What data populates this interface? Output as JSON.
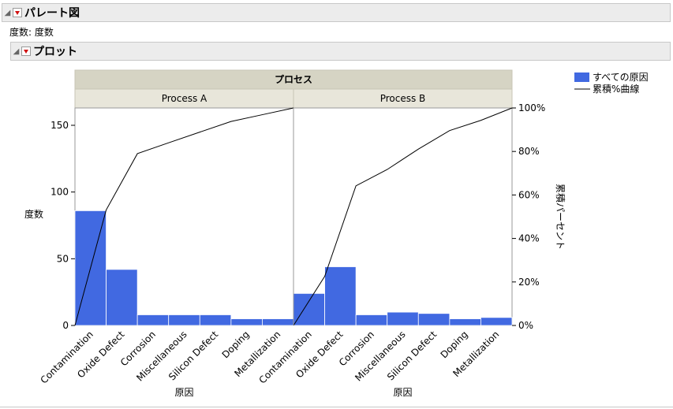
{
  "report": {
    "title": "パレート図",
    "freq_line": "度数: 度数",
    "plot_title": "プロット"
  },
  "colors": {
    "bar": "#4169e1",
    "cum_line": "#000000",
    "strip_top": "#d6d4c4",
    "strip_bottom": "#e8e6da"
  },
  "chart_data": {
    "type": "bar",
    "group_title": "プロセス",
    "panels": [
      {
        "name": "Process A",
        "categories": [
          "Contamination",
          "Oxide Defect",
          "Corrosion",
          "Miscellaneous",
          "Silicon Defect",
          "Doping",
          "Metallization"
        ],
        "values": [
          86,
          42,
          8,
          8,
          8,
          5,
          5
        ],
        "cumulative_pct": [
          53.1,
          79.0,
          84.0,
          88.9,
          93.8,
          96.9,
          100
        ]
      },
      {
        "name": "Process B",
        "categories": [
          "Contamination",
          "Oxide Defect",
          "Corrosion",
          "Miscellaneous",
          "Silicon Defect",
          "Doping",
          "Metallization"
        ],
        "values": [
          24,
          44,
          8,
          10,
          9,
          5,
          6
        ],
        "cumulative_pct": [
          22.6,
          64.2,
          71.7,
          81.1,
          89.6,
          94.3,
          100
        ]
      }
    ],
    "ylabel": "度数",
    "y2label": "累積パーセント",
    "xlabel": "原因",
    "ylim": [
      0,
      163
    ],
    "yticks": [
      0,
      50,
      100,
      150
    ],
    "y2ticks": [
      "0%",
      "20%",
      "40%",
      "60%",
      "80%",
      "100%"
    ],
    "legend": {
      "bar": "すべての原因",
      "line": "累積%曲線",
      "position": "top-right"
    },
    "grid": false
  }
}
